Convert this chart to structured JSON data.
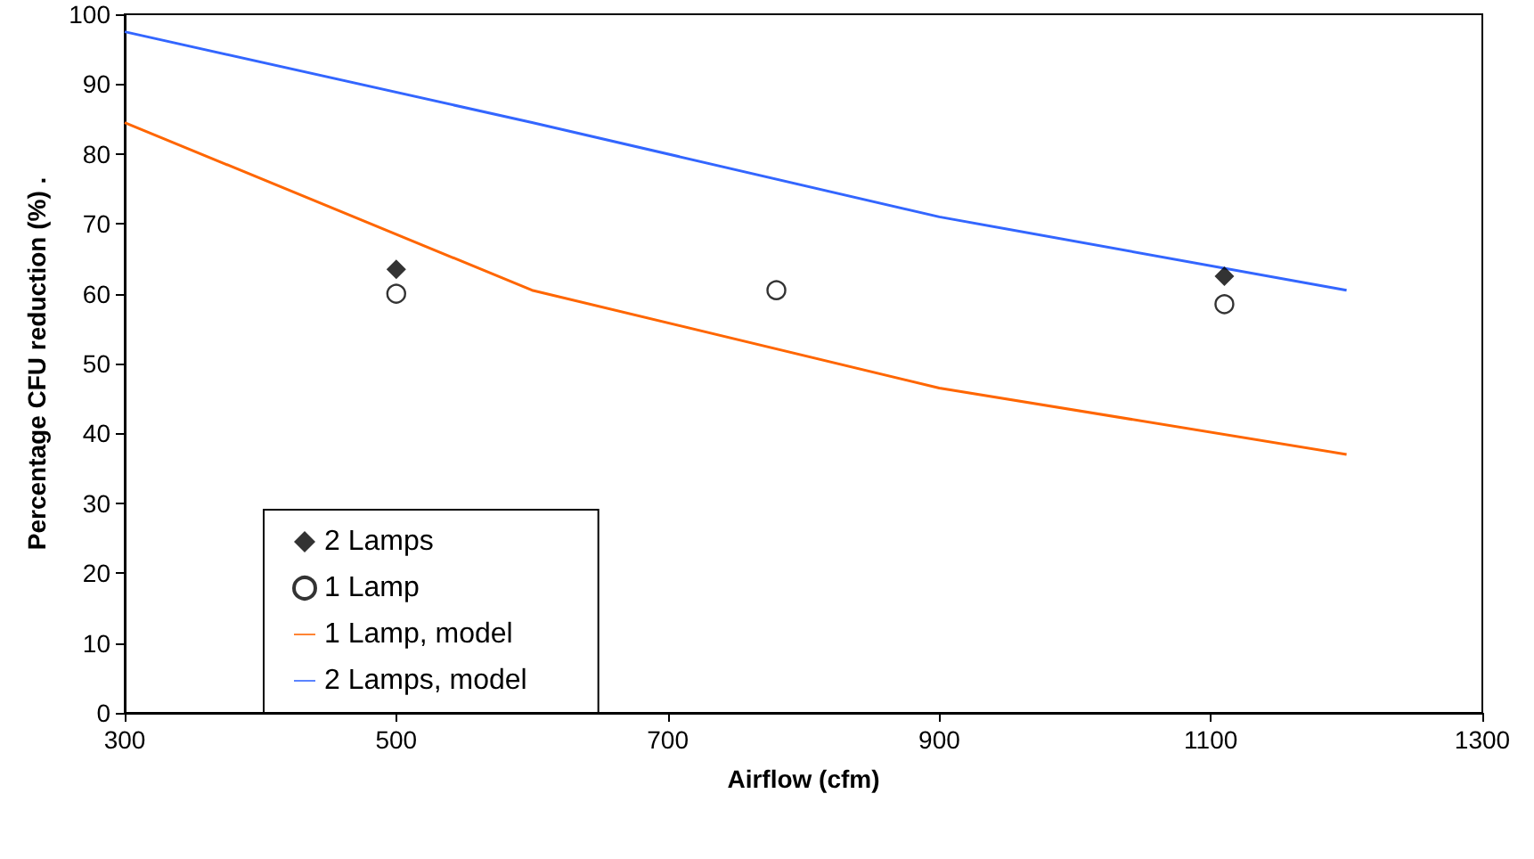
{
  "chart_data": {
    "type": "line",
    "xlabel": "Airflow (cfm)",
    "ylabel": "Percentage CFU reduction (%) .",
    "xlim": [
      300,
      1300
    ],
    "xticks": [
      300,
      500,
      700,
      900,
      1100,
      1300
    ],
    "ylim": [
      0,
      100
    ],
    "yticks": [
      0,
      10,
      20,
      30,
      40,
      50,
      60,
      70,
      80,
      90,
      100
    ],
    "grid": false,
    "legend": "bottom left",
    "series": [
      {
        "name": "2 Lamps",
        "type": "scatter",
        "marker": "diamond",
        "color": "#000000",
        "x": [
          500,
          1110
        ],
        "values": [
          63.5,
          62.5
        ]
      },
      {
        "name": "1 Lamp",
        "type": "scatter",
        "marker": "circle",
        "color": "#000000",
        "x": [
          500,
          780,
          1110
        ],
        "values": [
          60,
          60.5,
          58.5
        ]
      },
      {
        "name": "1 Lamp, model",
        "type": "line",
        "marker": "none",
        "color": "#ff6600",
        "x": [
          300,
          600,
          900,
          1200
        ],
        "values": [
          84.5,
          60.5,
          46.5,
          37
        ]
      },
      {
        "name": "2 Lamps, model",
        "type": "line",
        "marker": "none",
        "color": "#3366ff",
        "x": [
          300,
          600,
          900,
          1200
        ],
        "values": [
          97.5,
          84.5,
          71,
          60.5
        ]
      }
    ]
  }
}
